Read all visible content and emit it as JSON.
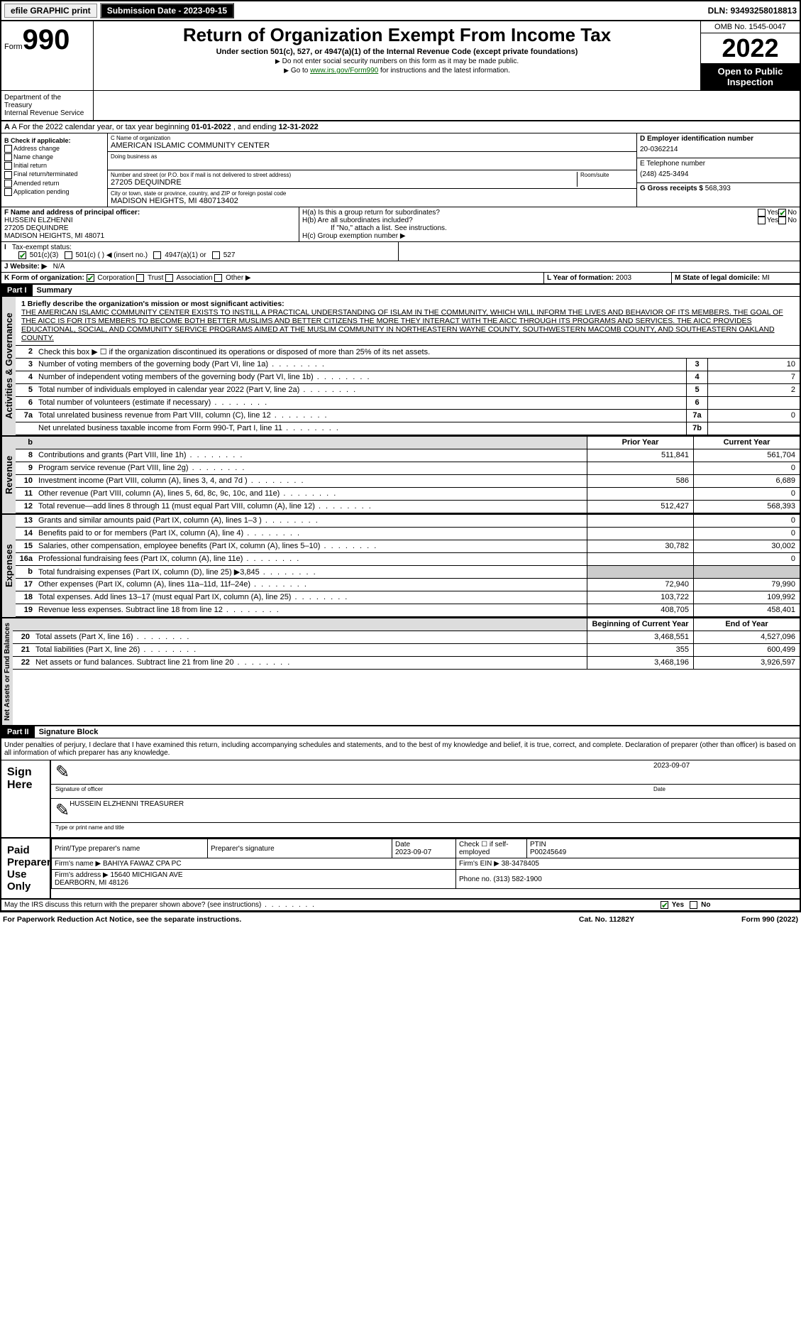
{
  "top": {
    "efile": "efile GRAPHIC print",
    "submit_btn": "Submission Date - 2023-09-15",
    "dln": "DLN: 93493258018813"
  },
  "header": {
    "form": "Form",
    "form_no": "990",
    "title": "Return of Organization Exempt From Income Tax",
    "subtitle": "Under section 501(c), 527, or 4947(a)(1) of the Internal Revenue Code (except private foundations)",
    "note1": "Do not enter social security numbers on this form as it may be made public.",
    "note2_pre": "Go to ",
    "note2_link": "www.irs.gov/Form990",
    "note2_post": " for instructions and the latest information.",
    "omb": "OMB No. 1545-0047",
    "year": "2022",
    "inspect": "Open to Public Inspection",
    "dept": "Department of the Treasury\nInternal Revenue Service"
  },
  "line_a": {
    "pre": "A For the 2022 calendar year, or tax year beginning ",
    "begin": "01-01-2022",
    "mid": " , and ending ",
    "end": "12-31-2022"
  },
  "box_b": {
    "hdr": "B Check if applicable:",
    "opts": [
      "Address change",
      "Name change",
      "Initial return",
      "Final return/terminated",
      "Amended return",
      "Application pending"
    ]
  },
  "box_c": {
    "lbl": "C Name of organization",
    "name": "AMERICAN ISLAMIC COMMUNITY CENTER",
    "dba_lbl": "Doing business as",
    "addr_lbl": "Number and street (or P.O. box if mail is not delivered to street address)",
    "addr": "27205 DEQUINDRE",
    "room_lbl": "Room/suite",
    "city_lbl": "City or town, state or province, country, and ZIP or foreign postal code",
    "city": "MADISON HEIGHTS, MI  480713402"
  },
  "box_d": {
    "lbl": "D Employer identification number",
    "val": "20-0362214"
  },
  "box_e": {
    "lbl": "E Telephone number",
    "val": "(248) 425-3494"
  },
  "box_g": {
    "lbl": "G Gross receipts $",
    "val": "568,393"
  },
  "box_f": {
    "lbl": "F  Name and address of principal officer:",
    "name": "HUSSEIN ELZHENNI",
    "addr1": "27205 DEQUINDRE",
    "addr2": "MADISON HEIGHTS, MI  48071"
  },
  "box_h": {
    "a": "H(a)  Is this a group return for subordinates?",
    "b": "H(b)  Are all subordinates included?",
    "b_note": "If \"No,\" attach a list. See instructions.",
    "c": "H(c)  Group exemption number ▶",
    "yes": "Yes",
    "no": "No"
  },
  "box_i": {
    "lbl": "I   Tax-exempt status:",
    "opts": [
      "501(c)(3)",
      "501(c) (  ) ◀ (insert no.)",
      "4947(a)(1) or",
      "527"
    ]
  },
  "box_j": {
    "lbl": "J   Website: ▶",
    "val": "N/A"
  },
  "box_k": {
    "lbl": "K Form of organization:",
    "opts": [
      "Corporation",
      "Trust",
      "Association",
      "Other ▶"
    ]
  },
  "box_l": {
    "lbl": "L Year of formation:",
    "val": "2003"
  },
  "box_m": {
    "lbl": "M State of legal domicile:",
    "val": "MI"
  },
  "part1": {
    "hdr": "Part I",
    "title": "Summary"
  },
  "mission": {
    "lbl": "1  Briefly describe the organization's mission or most significant activities:",
    "txt": "THE AMERICAN ISLAMIC COMMUNITY CENTER EXISTS TO INSTILL A PRACTICAL UNDERSTANDING OF ISLAM IN THE COMMUNITY, WHICH WILL INFORM THE LIVES AND BEHAVIOR OF ITS MEMBERS. THE GOAL OF THE AICC IS FOR ITS MEMBERS TO BECOME BOTH BETTER MUSLIMS AND BETTER CITIZENS THE MORE THEY INTERACT WITH THE AICC THROUGH ITS PROGRAMS AND SERVICES. THE AICC PROVIDES EDUCATIONAL, SOCIAL, AND COMMUNITY SERVICE PROGRAMS AIMED AT THE MUSLIM COMMUNITY IN NORTHEASTERN WAYNE COUNTY, SOUTHWESTERN MACOMB COUNTY, AND SOUTHEASTERN OAKLAND COUNTY."
  },
  "gov": {
    "vbar": "Activities & Governance",
    "l2": "Check this box ▶ ☐ if the organization discontinued its operations or disposed of more than 25% of its net assets.",
    "lines": [
      {
        "n": "3",
        "t": "Number of voting members of the governing body (Part VI, line 1a)",
        "b": "3",
        "v": "10"
      },
      {
        "n": "4",
        "t": "Number of independent voting members of the governing body (Part VI, line 1b)",
        "b": "4",
        "v": "7"
      },
      {
        "n": "5",
        "t": "Total number of individuals employed in calendar year 2022 (Part V, line 2a)",
        "b": "5",
        "v": "2"
      },
      {
        "n": "6",
        "t": "Total number of volunteers (estimate if necessary)",
        "b": "6",
        "v": ""
      },
      {
        "n": "7a",
        "t": "Total unrelated business revenue from Part VIII, column (C), line 12",
        "b": "7a",
        "v": "0"
      },
      {
        "n": "",
        "t": "Net unrelated business taxable income from Form 990-T, Part I, line 11",
        "b": "7b",
        "v": ""
      }
    ]
  },
  "rev": {
    "vbar": "Revenue",
    "hdr_py": "Prior Year",
    "hdr_cy": "Current Year",
    "lines": [
      {
        "n": "8",
        "t": "Contributions and grants (Part VIII, line 1h)",
        "py": "511,841",
        "cy": "561,704"
      },
      {
        "n": "9",
        "t": "Program service revenue (Part VIII, line 2g)",
        "py": "",
        "cy": "0"
      },
      {
        "n": "10",
        "t": "Investment income (Part VIII, column (A), lines 3, 4, and 7d )",
        "py": "586",
        "cy": "6,689"
      },
      {
        "n": "11",
        "t": "Other revenue (Part VIII, column (A), lines 5, 6d, 8c, 9c, 10c, and 11e)",
        "py": "",
        "cy": "0"
      },
      {
        "n": "12",
        "t": "Total revenue—add lines 8 through 11 (must equal Part VIII, column (A), line 12)",
        "py": "512,427",
        "cy": "568,393"
      }
    ]
  },
  "exp": {
    "vbar": "Expenses",
    "lines": [
      {
        "n": "13",
        "t": "Grants and similar amounts paid (Part IX, column (A), lines 1–3 )",
        "py": "",
        "cy": "0"
      },
      {
        "n": "14",
        "t": "Benefits paid to or for members (Part IX, column (A), line 4)",
        "py": "",
        "cy": "0"
      },
      {
        "n": "15",
        "t": "Salaries, other compensation, employee benefits (Part IX, column (A), lines 5–10)",
        "py": "30,782",
        "cy": "30,002"
      },
      {
        "n": "16a",
        "t": "Professional fundraising fees (Part IX, column (A), line 11e)",
        "py": "",
        "cy": "0"
      },
      {
        "n": "b",
        "t": "Total fundraising expenses (Part IX, column (D), line 25) ▶3,845",
        "py": "",
        "cy": "",
        "gray": true
      },
      {
        "n": "17",
        "t": "Other expenses (Part IX, column (A), lines 11a–11d, 11f–24e)",
        "py": "72,940",
        "cy": "79,990"
      },
      {
        "n": "18",
        "t": "Total expenses. Add lines 13–17 (must equal Part IX, column (A), line 25)",
        "py": "103,722",
        "cy": "109,992"
      },
      {
        "n": "19",
        "t": "Revenue less expenses. Subtract line 18 from line 12",
        "py": "408,705",
        "cy": "458,401"
      }
    ]
  },
  "net": {
    "vbar": "Net Assets or Fund Balances",
    "hdr_py": "Beginning of Current Year",
    "hdr_cy": "End of Year",
    "lines": [
      {
        "n": "20",
        "t": "Total assets (Part X, line 16)",
        "py": "3,468,551",
        "cy": "4,527,096"
      },
      {
        "n": "21",
        "t": "Total liabilities (Part X, line 26)",
        "py": "355",
        "cy": "600,499"
      },
      {
        "n": "22",
        "t": "Net assets or fund balances. Subtract line 21 from line 20",
        "py": "3,468,196",
        "cy": "3,926,597"
      }
    ]
  },
  "part2": {
    "hdr": "Part II",
    "title": "Signature Block"
  },
  "decl": "Under penalties of perjury, I declare that I have examined this return, including accompanying schedules and statements, and to the best of my knowledge and belief, it is true, correct, and complete. Declaration of preparer (other than officer) is based on all information of which preparer has any knowledge.",
  "sign": {
    "lbl": "Sign Here",
    "sig_lbl": "Signature of officer",
    "date_lbl": "Date",
    "date": "2023-09-07",
    "name": "HUSSEIN ELZHENNI  TREASURER",
    "name_lbl": "Type or print name and title"
  },
  "prep": {
    "lbl": "Paid Preparer Use Only",
    "cols": [
      "Print/Type preparer's name",
      "Preparer's signature",
      "Date",
      "",
      "PTIN"
    ],
    "date": "2023-09-07",
    "check_lbl": "Check ☐ if self-employed",
    "ptin": "P00245649",
    "firm_lbl": "Firm's name   ▶",
    "firm": "BAHIYA FAWAZ CPA PC",
    "ein_lbl": "Firm's EIN ▶",
    "ein": "38-3478405",
    "addr_lbl": "Firm's address ▶",
    "addr": "15640 MICHIGAN AVE\nDEARBORN, MI  48126",
    "phone_lbl": "Phone no.",
    "phone": "(313) 582-1900"
  },
  "may_irs": "May the IRS discuss this return with the preparer shown above? (see instructions)",
  "footer": {
    "left": "For Paperwork Reduction Act Notice, see the separate instructions.",
    "mid": "Cat. No. 11282Y",
    "right": "Form 990 (2022)"
  }
}
